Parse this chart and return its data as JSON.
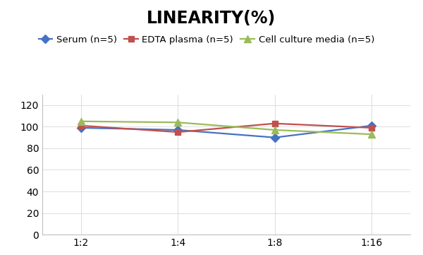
{
  "title": "LINEARITY(%)",
  "title_fontsize": 17,
  "title_fontweight": "bold",
  "x_labels": [
    "1:2",
    "1:4",
    "1:8",
    "1:16"
  ],
  "x_positions": [
    0,
    1,
    2,
    3
  ],
  "series": [
    {
      "label": "Serum (n=5)",
      "color": "#4472C4",
      "marker": "D",
      "markersize": 6,
      "values": [
        99,
        97,
        90,
        101
      ]
    },
    {
      "label": "EDTA plasma (n=5)",
      "color": "#C0504D",
      "marker": "s",
      "markersize": 6,
      "values": [
        101,
        95,
        103,
        99
      ]
    },
    {
      "label": "Cell culture media (n=5)",
      "color": "#9BBB59",
      "marker": "^",
      "markersize": 7,
      "values": [
        105,
        104,
        97,
        93
      ]
    }
  ],
  "ylim": [
    0,
    130
  ],
  "yticks": [
    0,
    20,
    40,
    60,
    80,
    100,
    120
  ],
  "background_color": "#ffffff",
  "legend_fontsize": 9.5,
  "linewidth": 1.6,
  "spine_color": "#c0c0c0",
  "gridline_color": "#d8d8d8",
  "tick_fontsize": 10
}
